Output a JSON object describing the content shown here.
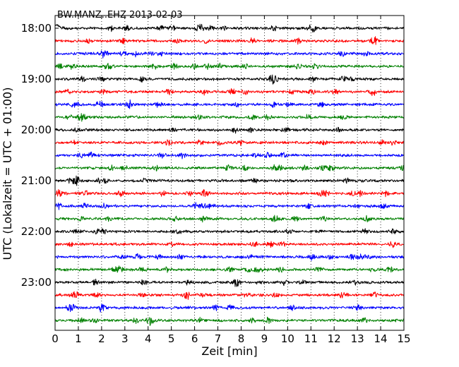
{
  "chart_data": {
    "type": "line",
    "title": "BW.MANZ..EHZ 2013-02-03",
    "xlabel": "Zeit  [min]",
    "ylabel": "UTC (Lokalzeit = UTC + 01:00)",
    "xlim": [
      0,
      15
    ],
    "x_ticks": [
      "0",
      "1",
      "2",
      "3",
      "4",
      "5",
      "6",
      "7",
      "8",
      "9",
      "10",
      "11",
      "12",
      "13",
      "14",
      "15"
    ],
    "y_ticks": [
      "18:00",
      "19:00",
      "20:00",
      "21:00",
      "22:00",
      "23:00"
    ],
    "grid": "vertical dotted",
    "trace_count": 24,
    "trace_minutes_per_line": 15,
    "start_time": "18:00",
    "colors": [
      "#000000",
      "#ff0000",
      "#0000ff",
      "#008000"
    ]
  }
}
